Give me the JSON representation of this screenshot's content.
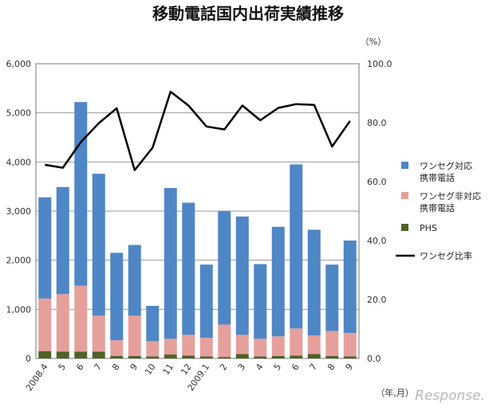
{
  "chart_data": {
    "type": "bar",
    "title": "移動電話国内出荷実績推移",
    "right_unit": "（%）",
    "xlabel": "（年,月）",
    "categories": [
      "2008.4",
      "5",
      "6",
      "7",
      "8",
      "9",
      "10",
      "11",
      "12",
      "2009.1",
      "2",
      "3",
      "4",
      "5",
      "6",
      "7",
      "8",
      "9"
    ],
    "ylim": [
      0,
      6000
    ],
    "y_ticks": [
      "0",
      "1,000",
      "2,000",
      "3,000",
      "4,000",
      "5,000",
      "6,000"
    ],
    "y2lim": [
      0,
      100
    ],
    "y2_ticks": [
      "0.0",
      "20.0",
      "40.0",
      "60.0",
      "80.0",
      "100.0"
    ],
    "grid": true,
    "legend_position": "right",
    "series": [
      {
        "name": "PHS",
        "kind": "bar",
        "color": "#4f6228",
        "values": [
          150,
          140,
          140,
          140,
          50,
          50,
          40,
          80,
          60,
          40,
          30,
          90,
          40,
          50,
          60,
          90,
          50,
          40
        ]
      },
      {
        "name": "ワンセグ非対応携帯電話",
        "kind": "bar",
        "color": "#e6a09c",
        "values": [
          1070,
          1170,
          1340,
          730,
          320,
          820,
          310,
          320,
          420,
          380,
          660,
          390,
          360,
          400,
          550,
          380,
          510,
          480
        ]
      },
      {
        "name": "ワンセグ対応携帯電話",
        "kind": "bar",
        "color": "#4f86c6",
        "values": [
          2060,
          2180,
          3740,
          2890,
          1780,
          1440,
          720,
          3070,
          2690,
          1490,
          2310,
          2410,
          1520,
          2230,
          3340,
          2150,
          1350,
          1880
        ]
      },
      {
        "name": "ワンセグ比率",
        "kind": "line",
        "axis": "right",
        "color": "#000000",
        "values": [
          65.7,
          64.7,
          73.4,
          79.8,
          84.9,
          63.9,
          71.5,
          90.5,
          85.8,
          78.7,
          77.7,
          85.8,
          80.8,
          85.0,
          86.3,
          86.0,
          71.9,
          80.6
        ]
      }
    ],
    "legend": [
      {
        "label": "ワンセグ対応\n携帯電話",
        "color": "#4f86c6",
        "kind": "box"
      },
      {
        "label": "ワンセグ非対応\n携帯電話",
        "color": "#e6a09c",
        "kind": "box"
      },
      {
        "label": "PHS",
        "color": "#4f6228",
        "kind": "box"
      },
      {
        "label": "ワンセグ比率",
        "color": "#000000",
        "kind": "line"
      }
    ]
  },
  "watermark": "Response."
}
